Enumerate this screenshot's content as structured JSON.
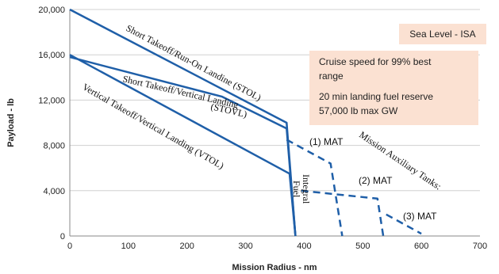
{
  "chart_data": {
    "type": "line",
    "xlabel": "Mission Radius - nm",
    "ylabel": "Payload - lb",
    "xlim": [
      0,
      700
    ],
    "ylim": [
      0,
      20000
    ],
    "x_ticks": [
      "0",
      "100",
      "200",
      "300",
      "400",
      "500",
      "600",
      "700"
    ],
    "y_ticks": [
      "0",
      "4,000",
      "8,000",
      "12,000",
      "16,000",
      "20,000"
    ],
    "grid": "horizontal",
    "series": [
      {
        "name": "Short Takeoff/Run-On Landine (STOL)",
        "style": "solid",
        "x": [
          0,
          370,
          385
        ],
        "y": [
          20000,
          10000,
          0
        ]
      },
      {
        "name": "Short Takeoff/Vertical Landing (STOVL)",
        "style": "solid",
        "x": [
          0,
          260,
          370,
          385
        ],
        "y": [
          15800,
          12300,
          9500,
          0
        ]
      },
      {
        "name": "Vertical Takeoff/Vertical Landing (VTOL)",
        "style": "solid",
        "x": [
          0,
          375,
          385
        ],
        "y": [
          16000,
          5500,
          0
        ]
      },
      {
        "name": "(1) MAT",
        "style": "dashed",
        "x": [
          370,
          445,
          465
        ],
        "y": [
          8500,
          6400,
          0
        ]
      },
      {
        "name": "(2) MAT",
        "style": "dashed",
        "x": [
          395,
          525,
          535
        ],
        "y": [
          4000,
          3300,
          0
        ]
      },
      {
        "name": "(3) MAT",
        "style": "dashed",
        "x": [
          540,
          600
        ],
        "y": [
          1900,
          200
        ]
      }
    ],
    "annotations": {
      "stol": "Short Takeoff/Run-On Landine (STOL)",
      "stovl_line1": "Short Takeoff/Vertical Landing",
      "stovl_line2": "(STOVL)",
      "vtol": "Vertical Takeoff/Vertical Landing (VTOL)",
      "integral_fuel_1": "Integral",
      "integral_fuel_2": "Fuel",
      "mat1": "(1) MAT",
      "mat2": "(2) MAT",
      "mat3": "(3) MAT",
      "mat_tanks": "Mission Auxiliary Tanks:",
      "sea_level": "Sea Level - ISA",
      "cruise_line1": "Cruise speed for 99% best",
      "cruise_line2": "range",
      "reserve": "20 min landing fuel reserve",
      "max_gw": "57,000 lb max GW"
    },
    "colors": {
      "line": "#1f5fa8",
      "grid": "#d0d0d0",
      "box_fill": "#fbe1d2"
    }
  }
}
